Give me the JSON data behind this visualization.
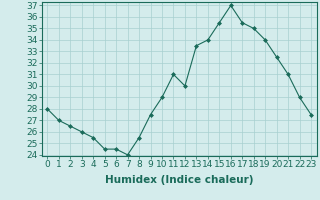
{
  "x": [
    0,
    1,
    2,
    3,
    4,
    5,
    6,
    7,
    8,
    9,
    10,
    11,
    12,
    13,
    14,
    15,
    16,
    17,
    18,
    19,
    20,
    21,
    22,
    23
  ],
  "y": [
    28,
    27,
    26.5,
    26,
    25.5,
    24.5,
    24.5,
    24,
    25.5,
    27.5,
    29,
    31,
    30,
    33.5,
    34,
    35.5,
    37,
    35.5,
    35,
    34,
    32.5,
    31,
    29,
    27.5
  ],
  "xlabel": "Humidex (Indice chaleur)",
  "ylim": [
    24,
    37
  ],
  "xlim": [
    -0.5,
    23.5
  ],
  "yticks": [
    24,
    25,
    26,
    27,
    28,
    29,
    30,
    31,
    32,
    33,
    34,
    35,
    36,
    37
  ],
  "xticks": [
    0,
    1,
    2,
    3,
    4,
    5,
    6,
    7,
    8,
    9,
    10,
    11,
    12,
    13,
    14,
    15,
    16,
    17,
    18,
    19,
    20,
    21,
    22,
    23
  ],
  "xtick_labels": [
    "0",
    "1",
    "2",
    "3",
    "4",
    "5",
    "6",
    "7",
    "8",
    "9",
    "10",
    "11",
    "12",
    "13",
    "14",
    "15",
    "16",
    "17",
    "18",
    "19",
    "20",
    "21",
    "22",
    "23"
  ],
  "line_color": "#1a6b5a",
  "marker_color": "#1a6b5a",
  "bg_color": "#d4ecec",
  "grid_color": "#a8d0d0",
  "axis_label_color": "#1a6b5a",
  "tick_label_color": "#1a6b5a",
  "xlabel_fontsize": 7.5,
  "tick_fontsize": 6.5
}
